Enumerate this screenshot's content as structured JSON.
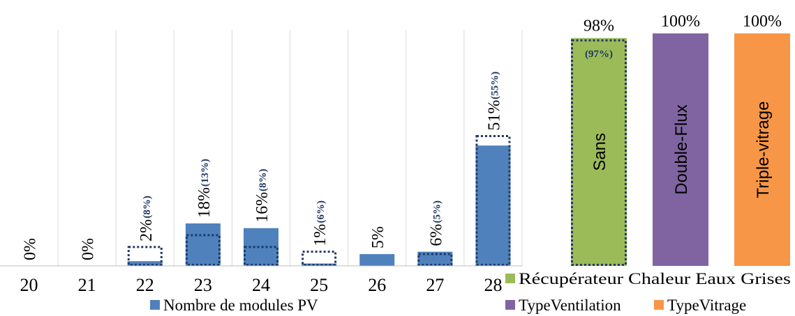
{
  "chart_data": [
    {
      "type": "bar",
      "categories": [
        "20",
        "21",
        "22",
        "23",
        "24",
        "25",
        "26",
        "27",
        "28"
      ],
      "series": [
        {
          "name": "Nombre de modules PV",
          "values": [
            0,
            0,
            2,
            18,
            16,
            1,
            5,
            6,
            51
          ],
          "labels": [
            "0%",
            "0%",
            "2%",
            "18%",
            "16%",
            "1%",
            "5%",
            "6%",
            "51%"
          ],
          "color": "#4f81bd"
        },
        {
          "style": "dotted-outline",
          "values": [
            null,
            null,
            8,
            13,
            8,
            6,
            null,
            5,
            55
          ],
          "labels": [
            "",
            "",
            "(8%)",
            "(13%)",
            "(8%)",
            "(6%)",
            "",
            "(5%)",
            "(55%)"
          ],
          "color": "#1f3864"
        }
      ],
      "ylim": [
        0,
        100
      ],
      "grid": "vertical",
      "legend": "bottom"
    },
    {
      "type": "bar",
      "categories": [
        "Sans",
        "Double-Flux",
        "Triple-vitrage"
      ],
      "series": [
        {
          "values": [
            98,
            100,
            100
          ],
          "labels": [
            "98%",
            "100%",
            "100%"
          ],
          "colors": [
            "#9bbb59",
            "#8064a2",
            "#f79646"
          ]
        },
        {
          "style": "dotted-outline",
          "values": [
            97,
            null,
            null
          ],
          "labels": [
            "(97%)",
            "",
            ""
          ],
          "color": "#1f3864"
        }
      ],
      "ylim": [
        0,
        100
      ],
      "legend_entries": [
        {
          "name": "Récupérateur Chaleur Eaux Grises",
          "color": "#9bbb59"
        },
        {
          "name": "TypeVentilation",
          "color": "#8064a2"
        },
        {
          "name": "TypeVitrage",
          "color": "#f79646"
        }
      ],
      "legend": "bottom"
    }
  ]
}
